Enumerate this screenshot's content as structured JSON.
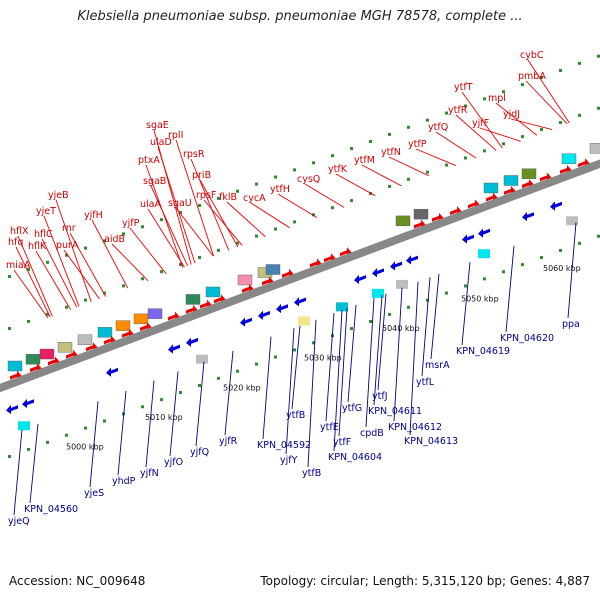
{
  "title": "Klebsiella pneumoniae subsp. pneumoniae MGH 78578, complete ...",
  "footer": {
    "accession": "Accession: NC_009648",
    "summary": "Topology: circular; Length: 5,315,120 bp; Genes: 4,887"
  },
  "colors": {
    "top_label": "#cc0000",
    "bottom_label": "#00008b",
    "forward_gene": "#ee0000",
    "reverse_gene": "#0000dd",
    "backbone": "#888888"
  },
  "kbp_ticks": [
    "5000 kbp",
    "5010 kbp",
    "5020 kbp",
    "5030 kbp",
    "5040 kbp",
    "5050 kbp",
    "5060 kbp"
  ],
  "top_labels": [
    "miaA",
    "hfq",
    "hflX",
    "hflK",
    "hflC",
    "yjeT",
    "yjeB",
    "purA",
    "rnr",
    "yjfH",
    "aidB",
    "yjfP",
    "ulaA",
    "sgaB",
    "ptxA",
    "ulaD",
    "sgaE",
    "sgaU",
    "rplI",
    "rpsR",
    "priB",
    "rpsF",
    "fklB",
    "cycA",
    "ytfH",
    "cysQ",
    "ytfK",
    "ytfM",
    "ytfN",
    "ytfP",
    "ytfQ",
    "ytfR",
    "ytfT",
    "yjfF",
    "mpl",
    "yjdJ",
    "pmbA",
    "cybC"
  ],
  "bottom_labels": [
    "yjeQ",
    "KPN_04560",
    "yjeS",
    "yhdP",
    "yjfN",
    "yjfO",
    "yjfQ",
    "yjfR",
    "KPN_04592",
    "yjfY",
    "ytfB",
    "ytfB",
    "KPN_04604",
    "ytfF",
    "ytfE",
    "ytfG",
    "cpdB",
    "ytfJ",
    "KPN_04611",
    "KPN_04612",
    "KPN_04613",
    "ytfL",
    "msrA",
    "KPN_04619",
    "KPN_04620",
    "ppa"
  ]
}
